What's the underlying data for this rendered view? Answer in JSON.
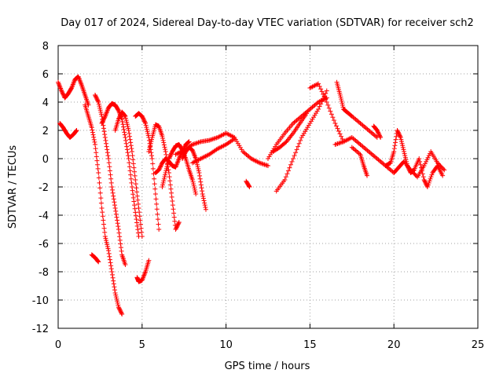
{
  "chart_data": {
    "type": "scatter",
    "title": "Day 017 of 2024, Sidereal Day-to-day VTEC variation (SDTVAR) for receiver sch2",
    "xlabel": "GPS time / hours",
    "ylabel": "SDTVAR / TECUs",
    "xlim": [
      0,
      25
    ],
    "ylim": [
      -12,
      8
    ],
    "x_ticks": [
      0,
      5,
      10,
      15,
      20,
      25
    ],
    "y_ticks": [
      -12,
      -10,
      -8,
      -6,
      -4,
      -2,
      0,
      2,
      4,
      6,
      8
    ],
    "grid": true,
    "marker": "+",
    "series": [
      {
        "name": "sch2",
        "color": "#ff0000",
        "tracks": [
          {
            "x": [
              0.0,
              0.2,
              0.4,
              0.6,
              0.8,
              1.0,
              1.2,
              1.4,
              1.6,
              1.8
            ],
            "y": [
              5.4,
              4.8,
              4.3,
              4.6,
              5.0,
              5.6,
              5.8,
              5.2,
              4.5,
              3.8
            ]
          },
          {
            "x": [
              0.1,
              0.3,
              0.5,
              0.7,
              0.9,
              1.1
            ],
            "y": [
              2.5,
              2.2,
              1.8,
              1.5,
              1.7,
              2.0
            ]
          },
          {
            "x": [
              1.6,
              1.8,
              2.0,
              2.2,
              2.4,
              2.6,
              2.8,
              3.0,
              3.2,
              3.4,
              3.6,
              3.8
            ],
            "y": [
              3.8,
              3.0,
              2.2,
              1.0,
              -1.0,
              -3.5,
              -5.5,
              -6.5,
              -8.0,
              -9.5,
              -10.5,
              -11.0
            ]
          },
          {
            "x": [
              2.0,
              2.2,
              2.4
            ],
            "y": [
              -6.8,
              -7.0,
              -7.3
            ]
          },
          {
            "x": [
              2.2,
              2.4,
              2.6,
              2.8,
              3.0,
              3.2,
              3.4,
              3.6,
              3.8,
              4.0
            ],
            "y": [
              4.5,
              4.0,
              3.0,
              1.5,
              0.0,
              -2.0,
              -3.5,
              -5.0,
              -6.8,
              -7.5
            ]
          },
          {
            "x": [
              2.6,
              2.8,
              3.0,
              3.2,
              3.4,
              3.6,
              3.8,
              4.0,
              4.2,
              4.4,
              4.6,
              4.8
            ],
            "y": [
              2.5,
              3.0,
              3.6,
              3.9,
              3.8,
              3.4,
              2.8,
              1.5,
              0.0,
              -2.0,
              -3.8,
              -5.5
            ]
          },
          {
            "x": [
              3.4,
              3.6,
              3.8,
              4.0,
              4.2,
              4.4,
              4.6,
              4.8,
              5.0
            ],
            "y": [
              2.0,
              2.8,
              3.3,
              3.0,
              2.0,
              0.5,
              -1.5,
              -3.5,
              -5.5
            ]
          },
          {
            "x": [
              4.6,
              4.8,
              5.0,
              5.2,
              5.4,
              5.6,
              5.8,
              6.0
            ],
            "y": [
              3.0,
              3.2,
              3.0,
              2.5,
              1.5,
              0.0,
              -2.5,
              -5.0
            ]
          },
          {
            "x": [
              4.7,
              4.8,
              5.0,
              5.2,
              5.4
            ],
            "y": [
              -8.4,
              -8.7,
              -8.6,
              -8.0,
              -7.2
            ]
          },
          {
            "x": [
              5.4,
              5.6,
              5.8,
              6.0,
              6.2,
              6.4,
              6.6,
              6.8,
              7.0,
              7.2
            ],
            "y": [
              0.5,
              1.5,
              2.4,
              2.3,
              1.6,
              0.5,
              -1.0,
              -3.0,
              -5.0,
              -4.5
            ]
          },
          {
            "x": [
              5.8,
              6.0,
              6.2,
              6.4,
              6.6,
              6.8,
              7.0,
              7.2,
              7.4,
              7.6,
              7.8
            ],
            "y": [
              -1.0,
              -0.8,
              -0.3,
              0.0,
              -0.2,
              -0.5,
              -0.6,
              0.0,
              0.5,
              1.0,
              1.2
            ]
          },
          {
            "x": [
              6.2,
              6.4,
              6.6,
              6.8,
              7.0,
              7.2,
              7.4,
              7.6,
              7.8,
              8.0,
              8.2
            ],
            "y": [
              -2.0,
              -1.0,
              0.0,
              0.5,
              0.9,
              1.0,
              0.6,
              0.0,
              -0.8,
              -1.5,
              -2.5
            ]
          },
          {
            "x": [
              7.4,
              7.6,
              7.8,
              8.0,
              8.2,
              8.4,
              8.6,
              8.8
            ],
            "y": [
              0.0,
              0.5,
              0.8,
              0.6,
              0.0,
              -1.0,
              -2.5,
              -3.6
            ]
          },
          {
            "x": [
              7.0,
              7.5,
              8.0,
              8.5,
              9.0,
              9.5,
              10.0,
              10.5,
              11.0,
              11.5,
              12.0,
              12.5
            ],
            "y": [
              0.3,
              0.6,
              1.0,
              1.2,
              1.3,
              1.5,
              1.8,
              1.5,
              0.5,
              0.0,
              -0.3,
              -0.5
            ]
          },
          {
            "x": [
              8.0,
              8.5,
              9.0,
              9.5,
              10.0,
              10.5
            ],
            "y": [
              -0.3,
              0.0,
              0.3,
              0.7,
              1.0,
              1.4
            ]
          },
          {
            "x": [
              11.2,
              11.4
            ],
            "y": [
              -1.6,
              -2.0
            ]
          },
          {
            "x": [
              12.5,
              13.0,
              13.5,
              14.0,
              14.5,
              15.0,
              15.5,
              16.0
            ],
            "y": [
              0.0,
              1.0,
              1.8,
              2.5,
              3.0,
              3.5,
              4.0,
              4.3
            ]
          },
          {
            "x": [
              13.0,
              13.5,
              14.0,
              14.5,
              15.0,
              15.5,
              16.0
            ],
            "y": [
              -2.3,
              -1.5,
              0.0,
              1.5,
              2.5,
              3.5,
              4.8
            ]
          },
          {
            "x": [
              12.8,
              13.2,
              13.6,
              14.0,
              14.4,
              14.8
            ],
            "y": [
              0.5,
              0.8,
              1.2,
              1.8,
              2.5,
              3.2
            ]
          },
          {
            "x": [
              15.0,
              15.5,
              16.0,
              16.5,
              17.0
            ],
            "y": [
              5.0,
              5.3,
              4.0,
              2.5,
              1.2
            ]
          },
          {
            "x": [
              16.6,
              16.8,
              17.0,
              17.2,
              17.5,
              18.0,
              18.5,
              19.0
            ],
            "y": [
              5.4,
              4.5,
              3.5,
              3.3,
              3.0,
              2.5,
              2.0,
              1.5
            ]
          },
          {
            "x": [
              16.5,
              17.0,
              17.5,
              18.0,
              18.5,
              19.0,
              19.5,
              20.0
            ],
            "y": [
              1.0,
              1.2,
              1.5,
              1.0,
              0.5,
              0.0,
              -0.5,
              -1.0
            ]
          },
          {
            "x": [
              17.5,
              18.0,
              18.2,
              18.4
            ],
            "y": [
              0.8,
              0.3,
              -0.5,
              -1.2
            ]
          },
          {
            "x": [
              18.8,
              19.0,
              19.2
            ],
            "y": [
              2.3,
              2.0,
              1.5
            ]
          },
          {
            "x": [
              19.5,
              19.8,
              20.0,
              20.2,
              20.4,
              20.6,
              20.8,
              21.0,
              21.2,
              21.5,
              21.8,
              22.0,
              22.3,
              22.6,
              22.9
            ],
            "y": [
              -0.5,
              -0.3,
              0.5,
              2.0,
              1.5,
              0.5,
              -0.5,
              -1.0,
              -0.8,
              0.0,
              -1.5,
              -2.0,
              -1.0,
              -0.5,
              -1.2
            ]
          },
          {
            "x": [
              20.0,
              20.3,
              20.6,
              21.0,
              21.4,
              21.8,
              22.2,
              22.6,
              23.0
            ],
            "y": [
              -1.0,
              -0.6,
              -0.2,
              -0.8,
              -1.3,
              -0.5,
              0.5,
              -0.3,
              -0.8
            ]
          }
        ]
      }
    ]
  }
}
